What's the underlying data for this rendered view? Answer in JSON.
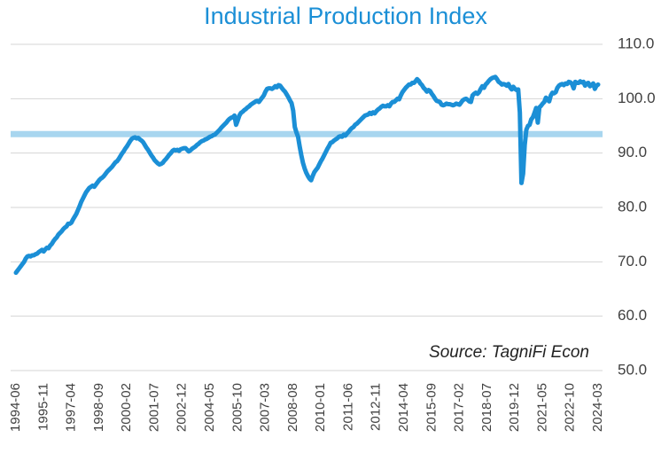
{
  "chart_data": {
    "type": "line",
    "title": "Industrial Production Index",
    "annotation": "Source: TagniFi Econ",
    "categories": [
      "1994-06",
      null,
      null,
      null,
      null,
      null,
      null,
      null,
      null,
      null,
      null,
      null,
      null,
      null,
      null,
      null,
      null,
      "1995-11",
      null,
      null,
      null,
      null,
      null,
      null,
      null,
      null,
      null,
      null,
      null,
      null,
      null,
      null,
      null,
      null,
      "1997-04",
      null,
      null,
      null,
      null,
      null,
      null,
      null,
      null,
      null,
      null,
      null,
      null,
      null,
      null,
      null,
      null,
      "1998-09",
      null,
      null,
      null,
      null,
      null,
      null,
      null,
      null,
      null,
      null,
      null,
      null,
      null,
      null,
      null,
      null,
      "2000-02",
      null,
      null,
      null,
      null,
      null,
      null,
      null,
      null,
      null,
      null,
      null,
      null,
      null,
      null,
      null,
      null,
      "2001-07",
      null,
      null,
      null,
      null,
      null,
      null,
      null,
      null,
      null,
      null,
      null,
      null,
      null,
      null,
      null,
      null,
      "2002-12",
      null,
      null,
      null,
      null,
      null,
      null,
      null,
      null,
      null,
      null,
      null,
      null,
      null,
      null,
      null,
      null,
      "2004-05",
      null,
      null,
      null,
      null,
      null,
      null,
      null,
      null,
      null,
      null,
      null,
      null,
      null,
      null,
      null,
      null,
      "2005-10",
      null,
      null,
      null,
      null,
      null,
      null,
      null,
      null,
      null,
      null,
      null,
      null,
      null,
      null,
      null,
      null,
      "2007-03",
      null,
      null,
      null,
      null,
      null,
      null,
      null,
      null,
      null,
      null,
      null,
      null,
      null,
      null,
      null,
      null,
      "2008-08",
      null,
      null,
      null,
      null,
      null,
      null,
      null,
      null,
      null,
      null,
      null,
      null,
      null,
      null,
      null,
      null,
      "2010-01",
      null,
      null,
      null,
      null,
      null,
      null,
      null,
      null,
      null,
      null,
      null,
      null,
      null,
      null,
      null,
      null,
      "2011-06",
      null,
      null,
      null,
      null,
      null,
      null,
      null,
      null,
      null,
      null,
      null,
      null,
      null,
      null,
      null,
      null,
      "2012-11",
      null,
      null,
      null,
      null,
      null,
      null,
      null,
      null,
      null,
      null,
      null,
      null,
      null,
      null,
      null,
      null,
      "2014-04",
      null,
      null,
      null,
      null,
      null,
      null,
      null,
      null,
      null,
      null,
      null,
      null,
      null,
      null,
      null,
      null,
      "2015-09",
      null,
      null,
      null,
      null,
      null,
      null,
      null,
      null,
      null,
      null,
      null,
      null,
      null,
      null,
      null,
      null,
      "2017-02",
      null,
      null,
      null,
      null,
      null,
      null,
      null,
      null,
      null,
      null,
      null,
      null,
      null,
      null,
      null,
      null,
      "2018-07",
      null,
      null,
      null,
      null,
      null,
      null,
      null,
      null,
      null,
      null,
      null,
      null,
      null,
      null,
      null,
      null,
      "2019-12",
      null,
      null,
      null,
      null,
      null,
      null,
      null,
      null,
      null,
      null,
      null,
      null,
      null,
      null,
      null,
      null,
      "2021-05",
      null,
      null,
      null,
      null,
      null,
      null,
      null,
      null,
      null,
      null,
      null,
      null,
      null,
      null,
      null,
      null,
      "2022-10",
      null,
      null,
      null,
      null,
      null,
      null,
      null,
      null,
      null,
      null,
      null,
      null,
      null,
      null,
      null,
      null,
      "2024-03"
    ],
    "values": [
      68.0,
      68.4,
      68.8,
      69.2,
      69.6,
      70.0,
      70.6,
      71.0,
      71.1,
      71.0,
      71.2,
      71.2,
      71.4,
      71.5,
      71.8,
      72.0,
      72.2,
      71.9,
      72.3,
      72.6,
      72.5,
      73.0,
      73.3,
      73.8,
      74.2,
      74.5,
      75.0,
      75.3,
      75.6,
      76.0,
      76.3,
      76.5,
      77.0,
      77.0,
      77.2,
      77.8,
      78.3,
      78.8,
      79.5,
      80.2,
      81.0,
      81.6,
      82.2,
      82.8,
      83.2,
      83.6,
      83.8,
      84.0,
      83.8,
      84.2,
      84.6,
      85.0,
      85.3,
      85.5,
      85.8,
      86.2,
      86.6,
      86.9,
      87.2,
      87.5,
      87.9,
      88.3,
      88.5,
      88.9,
      89.4,
      89.9,
      90.3,
      90.8,
      91.2,
      91.7,
      92.2,
      92.6,
      92.8,
      92.9,
      92.7,
      92.8,
      92.5,
      92.3,
      92.0,
      91.5,
      91.0,
      90.6,
      90.1,
      89.6,
      89.2,
      88.7,
      88.4,
      88.1,
      87.9,
      88.0,
      88.2,
      88.6,
      88.9,
      89.3,
      89.7,
      90.0,
      90.4,
      90.6,
      90.5,
      90.6,
      90.4,
      90.7,
      90.8,
      90.9,
      90.9,
      90.6,
      90.3,
      90.5,
      90.8,
      91.0,
      91.2,
      91.5,
      91.7,
      92.0,
      92.2,
      92.3,
      92.5,
      92.6,
      92.8,
      93.0,
      93.1,
      93.3,
      93.4,
      93.7,
      94.0,
      94.3,
      94.7,
      95.0,
      95.3,
      95.6,
      96.0,
      96.3,
      96.5,
      96.6,
      96.9,
      95.2,
      96.0,
      96.9,
      97.4,
      97.6,
      97.9,
      98.1,
      98.4,
      98.6,
      98.9,
      99.1,
      99.3,
      99.5,
      99.6,
      99.4,
      99.8,
      100.2,
      100.6,
      101.3,
      101.8,
      101.9,
      101.9,
      101.8,
      102.0,
      102.3,
      102.1,
      102.5,
      102.4,
      102.0,
      101.6,
      101.3,
      100.8,
      100.3,
      99.7,
      99.2,
      97.8,
      94.8,
      93.8,
      93.0,
      91.2,
      89.6,
      88.2,
      87.2,
      86.4,
      85.8,
      85.3,
      85.0,
      85.8,
      86.5,
      86.9,
      87.3,
      87.9,
      88.5,
      89.0,
      89.6,
      90.2,
      90.8,
      91.3,
      91.9,
      92.0,
      92.3,
      92.5,
      92.7,
      93.0,
      93.1,
      93.0,
      93.4,
      93.2,
      93.6,
      93.9,
      94.3,
      94.6,
      94.8,
      95.2,
      95.4,
      95.7,
      96.0,
      96.3,
      96.6,
      96.9,
      97.0,
      97.1,
      97.4,
      97.2,
      97.5,
      97.3,
      97.7,
      98.0,
      98.2,
      98.5,
      98.7,
      98.6,
      98.6,
      98.8,
      98.6,
      99.1,
      99.4,
      99.4,
      99.7,
      100.0,
      99.9,
      100.6,
      101.2,
      101.6,
      102.0,
      102.3,
      102.6,
      102.6,
      102.9,
      102.9,
      103.2,
      103.6,
      103.3,
      102.8,
      102.5,
      102.0,
      101.7,
      101.3,
      101.6,
      101.4,
      100.9,
      100.5,
      100.0,
      99.6,
      99.5,
      99.4,
      98.9,
      98.8,
      98.9,
      99.1,
      99.0,
      99.0,
      98.9,
      98.8,
      98.9,
      99.1,
      99.0,
      98.9,
      99.3,
      99.7,
      99.9,
      100.0,
      99.8,
      99.5,
      99.4,
      100.6,
      100.9,
      101.1,
      100.9,
      101.2,
      101.8,
      102.3,
      102.0,
      102.6,
      102.9,
      103.3,
      103.6,
      103.8,
      103.9,
      104.0,
      103.6,
      103.1,
      102.9,
      102.6,
      102.7,
      102.6,
      102.4,
      102.7,
      102.1,
      101.7,
      102.2,
      101.8,
      101.6,
      101.7,
      97.5,
      84.5,
      86.2,
      91.5,
      94.3,
      95.0,
      95.2,
      96.2,
      96.6,
      97.4,
      98.3,
      95.6,
      98.4,
      98.7,
      99.1,
      99.4,
      100.2,
      99.8,
      99.5,
      100.6,
      101.1,
      101.0,
      101.2,
      102.0,
      102.4,
      102.6,
      102.7,
      102.5,
      102.8,
      102.7,
      103.1,
      103.0,
      102.7,
      101.9,
      103.1,
      102.9,
      102.9,
      103.2,
      103.0,
      103.1,
      102.4,
      102.8,
      102.9,
      102.3,
      102.5,
      102.8,
      101.8,
      102.4,
      102.6
    ],
    "color": "#1b8fd6",
    "reference_line": 93.5,
    "reference_color": "#a8d6ef",
    "ylim": [
      50,
      110
    ],
    "yticks": [
      {
        "value": 50,
        "label": "50.0"
      },
      {
        "value": 60,
        "label": "60.0"
      },
      {
        "value": 70,
        "label": "70.0"
      },
      {
        "value": 80,
        "label": "80.0"
      },
      {
        "value": 90,
        "label": "90.0"
      },
      {
        "value": 100,
        "label": "100.0"
      },
      {
        "value": 110,
        "label": "110.0"
      }
    ],
    "grid": true
  }
}
